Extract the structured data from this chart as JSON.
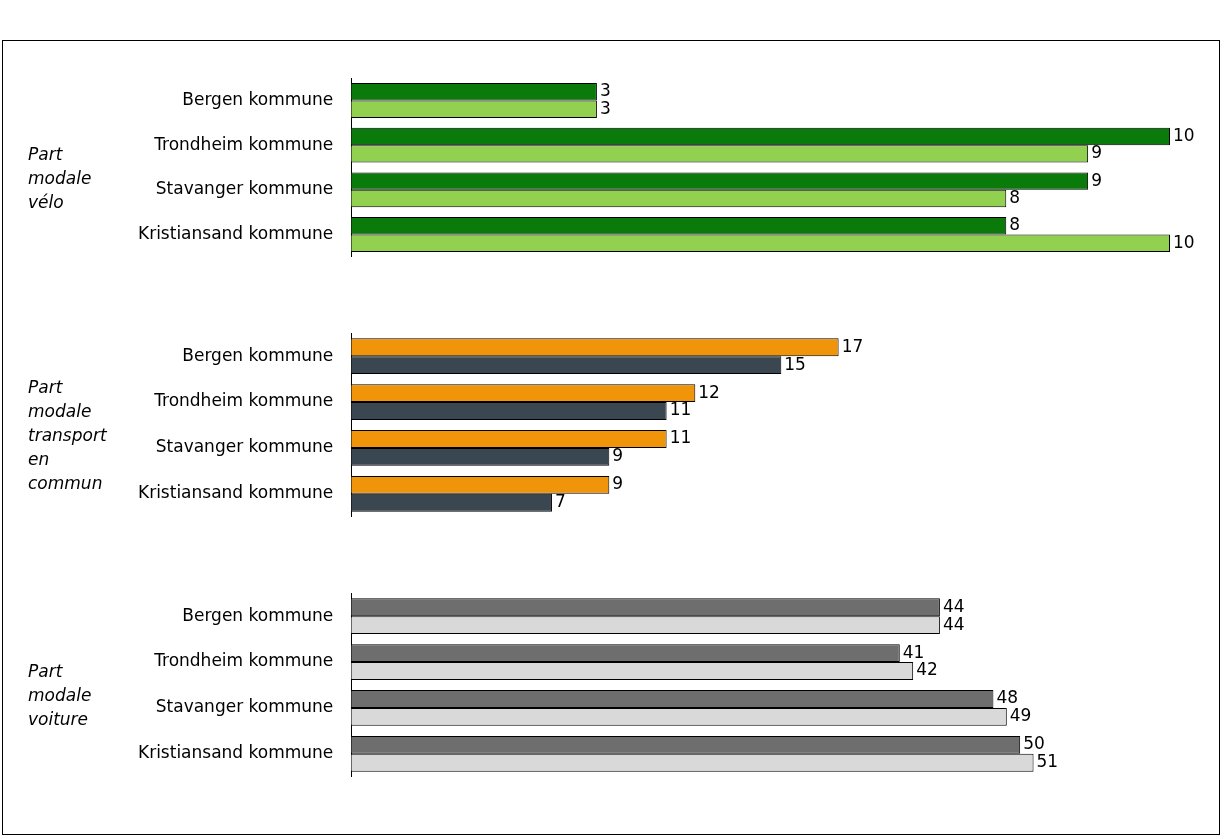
{
  "chart_data": [
    {
      "type": "bar",
      "orientation": "horizontal",
      "ylabel": "Part modale vélo",
      "categories": [
        "Bergen kommune",
        "Trondheim kommune",
        "Stavanger kommune",
        "Kristiansand kommune"
      ],
      "data_labels": true,
      "legend": false,
      "tick_labels": "y",
      "series": [
        {
          "color": "#0a7a0a",
          "values": [
            3,
            10,
            9,
            8
          ]
        },
        {
          "color": "#92d050",
          "values": [
            3,
            9,
            8,
            10
          ]
        }
      ]
    },
    {
      "type": "bar",
      "orientation": "horizontal",
      "ylabel": "Part modale transport en commun",
      "categories": [
        "Bergen kommune",
        "Trondheim kommune",
        "Stavanger kommune",
        "Kristiansand kommune"
      ],
      "data_labels": true,
      "legend": false,
      "tick_labels": "y",
      "series": [
        {
          "color": "#f0940a",
          "values": [
            17,
            12,
            11,
            9
          ]
        },
        {
          "color": "#3a4750",
          "values": [
            15,
            11,
            9,
            7
          ]
        }
      ]
    },
    {
      "type": "bar",
      "orientation": "horizontal",
      "ylabel": "Part modale voiture",
      "categories": [
        "Bergen kommune",
        "Trondheim kommune",
        "Stavanger kommune",
        "Kristiansand kommune"
      ],
      "data_labels": true,
      "legend": false,
      "tick_labels": "y",
      "series": [
        {
          "color": "#6e6e6e",
          "values": [
            44,
            41,
            48,
            50
          ]
        },
        {
          "color": "#d9d9d9",
          "values": [
            44,
            42,
            49,
            51
          ]
        }
      ]
    }
  ]
}
